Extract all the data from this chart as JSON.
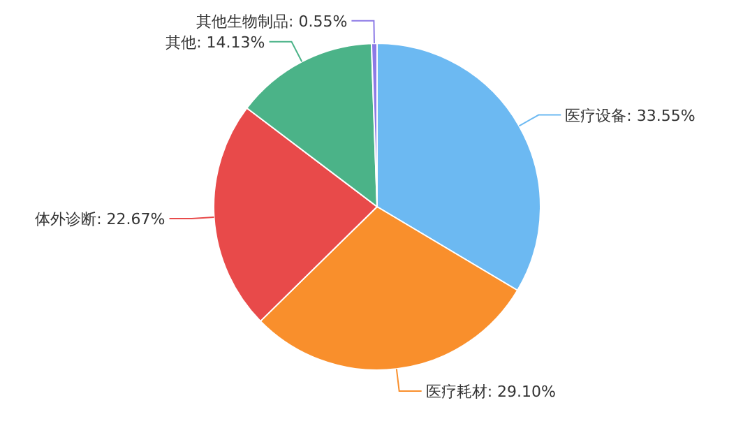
{
  "chart_data": {
    "type": "pie",
    "categories": [
      "医疗设备",
      "医疗耗材",
      "体外诊断",
      "其他",
      "其他生物制品"
    ],
    "values": [
      33.55,
      29.1,
      22.67,
      14.13,
      0.55
    ],
    "value_labels": [
      "33.55%",
      "29.10%",
      "22.67%",
      "14.13%",
      "0.55%"
    ],
    "colors": [
      "#6cb9f2",
      "#f98f2c",
      "#e84a4a",
      "#4bb388",
      "#8c7ae6"
    ],
    "legend": false
  }
}
